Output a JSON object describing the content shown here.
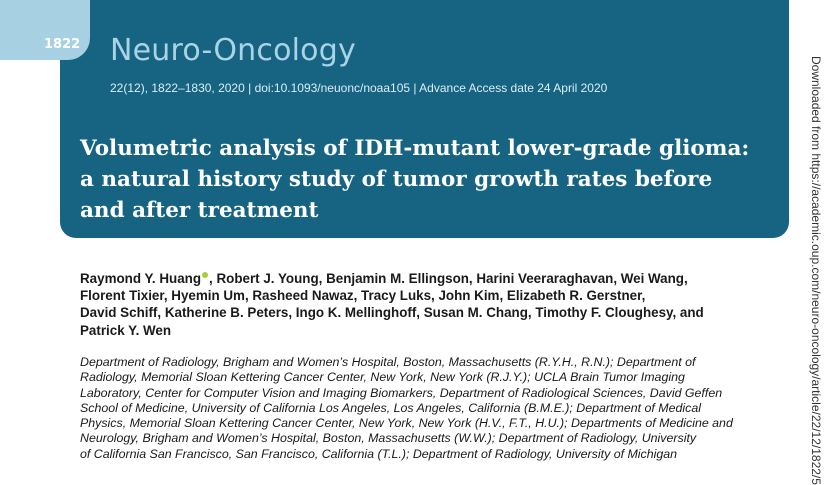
{
  "header": {
    "page_number": "1822",
    "journal_name": "Neuro-Oncology",
    "citation": "22(12), 1822–1830, 2020 | doi:10.1093/neuonc/noaa105 | Advance Access date 24 April 2020",
    "colors": {
      "band": "#166482",
      "tab": "#a8d0e3",
      "journal_name": "#aad3e6"
    }
  },
  "article": {
    "title_lines": [
      "Volumetric analysis of IDH-mutant lower-grade glioma:",
      "a natural history study of tumor growth rates before",
      "and after treatment"
    ],
    "authors": {
      "first_author": "Raymond Y. Huang",
      "line1_rest": ", Robert J. Young, Benjamin M. Ellingson, Harini Veeraraghavan, Wei Wang,",
      "lines": [
        "Florent Tixier, Hyemin Um, Rasheed Nawaz, Tracy Luks, John Kim, Elizabeth R. Gerstner,",
        "David Schiff, Katherine B. Peters, Ingo K. Mellinghoff, Susan M. Chang, Timothy F. Cloughesy, and",
        "Patrick Y. Wen"
      ],
      "orcid_icon": "orcid-icon"
    },
    "affiliation_lines": [
      "Department of Radiology, Brigham and Women’s Hospital, Boston, Massachusetts (R.Y.H., R.N.); Department of",
      "Radiology, Memorial Sloan Kettering Cancer Center, New York, New York (R.J.Y.); UCLA Brain Tumor Imaging",
      "Laboratory, Center for Computer Vision and Imaging Biomarkers, Department of Radiological Sciences, David Geffen",
      "School of Medicine, University of California Los Angeles, Los Angeles, California (B.M.E.); Department of Medical",
      "Physics, Memorial Sloan Kettering Cancer Center, New York, New York (H.V., F.T., H.U.); Departments of Medicine and",
      "Neurology, Brigham and Women’s Hospital, Boston, Massachusetts (W.W.); Department of Radiology, University",
      "of California San Francisco, San Francisco, California (T.L.); Department of Radiology, University of Michigan"
    ]
  },
  "margin_note": "Downloaded from https://academic.oup.com/neuro-oncology/article/22/12/1822/5"
}
